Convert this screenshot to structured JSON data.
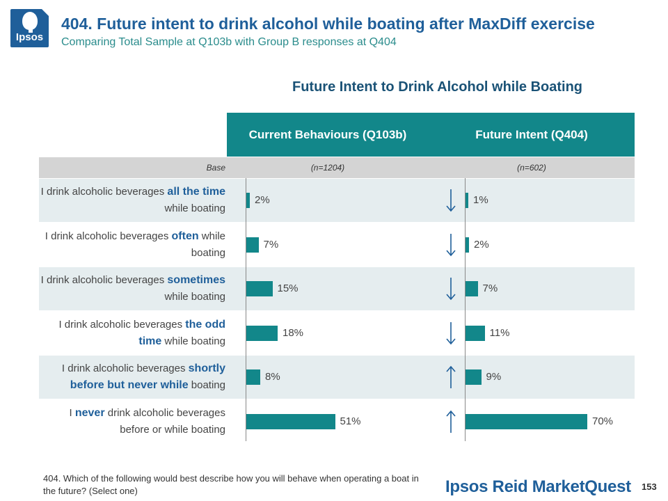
{
  "header": {
    "logo_text": "Ipsos",
    "title": "404. Future intent to drink alcohol while boating after MaxDiff exercise",
    "subtitle": "Comparing Total Sample at Q103b with Group B responses at Q404"
  },
  "colors": {
    "accent": "#12878a",
    "title": "#1f5f9a",
    "subtitle": "#2a8c8c",
    "base_band": "#d4d4d4",
    "row_shade": "#e5edef"
  },
  "chart_data": {
    "type": "bar",
    "orientation": "horizontal",
    "title": "Future Intent to Drink Alcohol while Boating",
    "base_label": "Base",
    "categories": [
      "I drink alcoholic beverages all the time while boating",
      "I drink alcoholic beverages often while boating",
      "I drink alcoholic beverages sometimes while boating",
      "I drink alcoholic beverages the odd time while boating",
      "I drink alcoholic beverages shortly before but never while boating",
      "I never drink alcoholic beverages before or while boating"
    ],
    "category_parts": [
      {
        "pre": "I drink alcoholic beverages ",
        "em": "all the time",
        "post": " while boating"
      },
      {
        "pre": "I drink alcoholic beverages ",
        "em": "often",
        "post": " while boating"
      },
      {
        "pre": "I drink alcoholic beverages ",
        "em": "sometimes",
        "post": " while boating"
      },
      {
        "pre": "I drink alcoholic beverages ",
        "em": "the odd time",
        "post": " while boating"
      },
      {
        "pre": "I drink alcoholic beverages ",
        "em": "shortly before but never while",
        "post": " boating"
      },
      {
        "pre": "I ",
        "em": "never",
        "post": " drink alcoholic beverages before or while boating"
      }
    ],
    "series": [
      {
        "name": "Current Behaviours (Q103b)",
        "base": "(n=1204)",
        "values": [
          2,
          7,
          15,
          18,
          8,
          51
        ],
        "labels": [
          "2%",
          "7%",
          "15%",
          "18%",
          "8%",
          "51%"
        ]
      },
      {
        "name": "Future Intent (Q404)",
        "base": "(n=602)",
        "values": [
          1,
          2,
          7,
          11,
          9,
          70
        ],
        "labels": [
          "1%",
          "2%",
          "7%",
          "11%",
          "9%",
          "70%"
        ]
      }
    ],
    "change_arrows": [
      "down",
      "down",
      "down",
      "down",
      "up",
      "up"
    ],
    "value_unit": "%",
    "grid": false
  },
  "footer": {
    "footnote": "404. Which of the following would best describe how you will behave when operating a boat in the future? (Select one)",
    "brand": "Ipsos Reid MarketQuest",
    "page_number": "153"
  }
}
